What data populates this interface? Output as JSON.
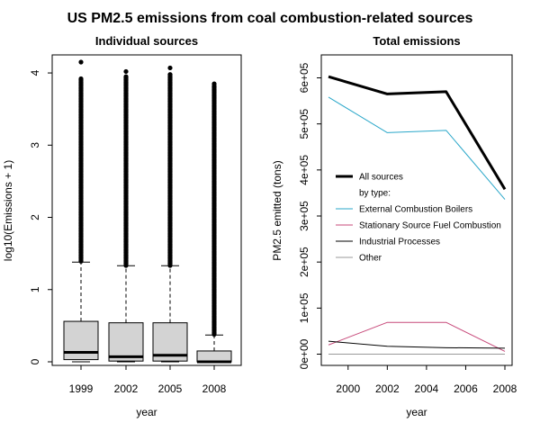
{
  "title": "US PM2.5 emissions from coal combustion-related sources",
  "chart_data": [
    {
      "type": "box",
      "title": "Individual sources",
      "xlabel": "year",
      "ylabel": "log10(Emissions + 1)",
      "categories": [
        "1999",
        "2002",
        "2005",
        "2008"
      ],
      "yticks": [
        "0",
        "1",
        "2",
        "3",
        "4"
      ],
      "ylim": [
        -0.05,
        4.25
      ],
      "boxes": [
        {
          "min": 0.0,
          "q1": 0.03,
          "median": 0.13,
          "q3": 0.56,
          "whisker_high": 1.38,
          "outlier_low": 1.38,
          "outlier_high": 3.92,
          "max_outlier": 4.15
        },
        {
          "min": 0.0,
          "q1": 0.01,
          "median": 0.07,
          "q3": 0.54,
          "whisker_high": 1.33,
          "outlier_low": 1.33,
          "outlier_high": 3.95,
          "max_outlier": 4.02
        },
        {
          "min": 0.0,
          "q1": 0.01,
          "median": 0.09,
          "q3": 0.54,
          "whisker_high": 1.33,
          "outlier_low": 1.33,
          "outlier_high": 3.98,
          "max_outlier": 4.07
        },
        {
          "min": 0.0,
          "q1": 0.0,
          "median": 0.0,
          "q3": 0.15,
          "whisker_high": 0.37,
          "outlier_low": 0.37,
          "outlier_high": 3.82,
          "max_outlier": 3.85
        }
      ]
    },
    {
      "type": "line",
      "title": "Total emissions",
      "xlabel": "year",
      "ylabel": "PM2.5 emitted (tons)",
      "x": [
        1999,
        2002,
        2005,
        2008
      ],
      "xticks": [
        "2000",
        "2002",
        "2004",
        "2006",
        "2008"
      ],
      "yticks": [
        "0e+00",
        "1e+05",
        "2e+05",
        "3e+05",
        "4e+05",
        "5e+05",
        "6e+05"
      ],
      "ylim": [
        0,
        600000
      ],
      "legend_placement": "center-left",
      "legend_header": "by type:",
      "series": [
        {
          "name": "All sources",
          "color": "#000000",
          "width": 3,
          "values": [
            602600,
            565000,
            570000,
            358000
          ]
        },
        {
          "name": "External Combustion Boilers",
          "color": "#2aa7c9",
          "width": 1,
          "values": [
            558000,
            481000,
            486000,
            336000
          ]
        },
        {
          "name": "Stationary Source Fuel Combustion",
          "color": "#c7497a",
          "width": 1,
          "values": [
            20000,
            69000,
            69000,
            6000
          ]
        },
        {
          "name": "Industrial Processes",
          "color": "#000000",
          "width": 1,
          "values": [
            28000,
            17000,
            14000,
            13000
          ]
        },
        {
          "name": "Other",
          "color": "#9a9a9a",
          "width": 1,
          "values": [
            0,
            0,
            0,
            0
          ]
        }
      ]
    }
  ]
}
